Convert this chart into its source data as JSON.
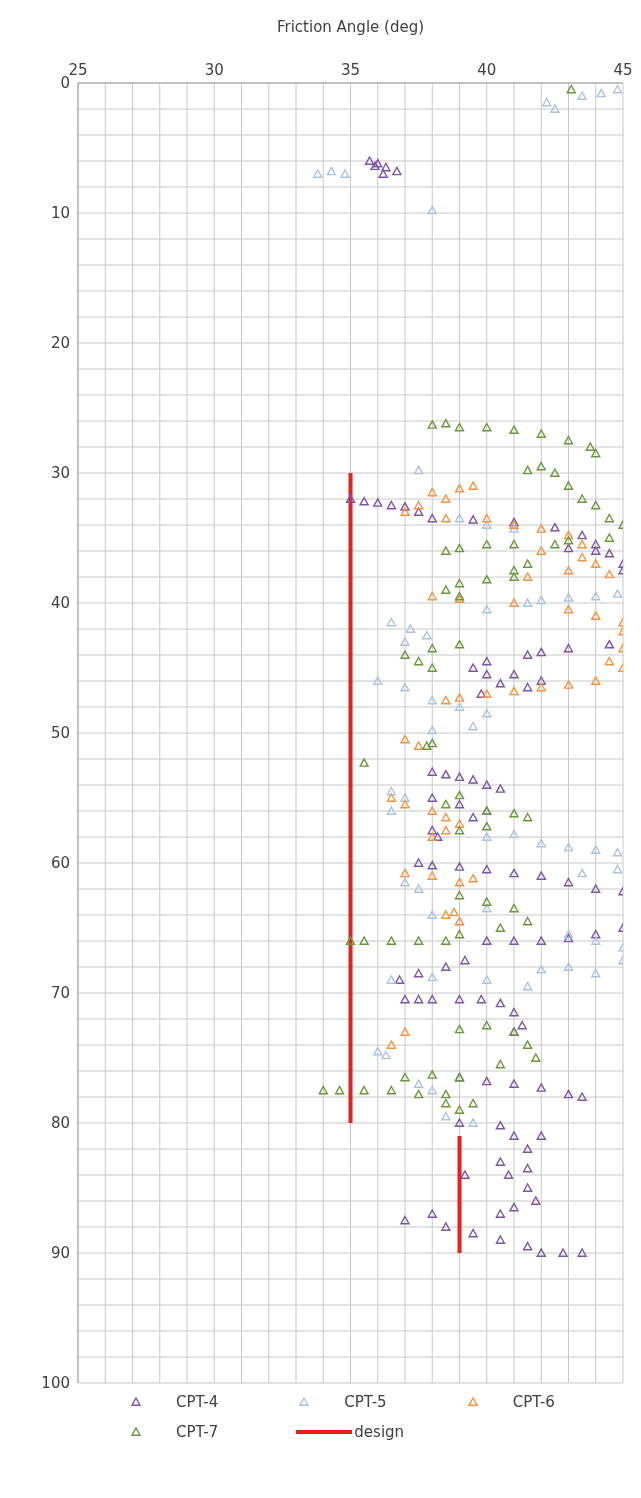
{
  "chart_data": {
    "type": "scatter",
    "xlabel": "Friction Angle (deg)",
    "xlim": [
      25,
      45
    ],
    "xticks": [
      25,
      {
        "value": 26,
        "label": null
      },
      {
        "value": 27,
        "label": null
      },
      {
        "value": 28,
        "label": null
      },
      {
        "value": 29,
        "label": null
      },
      30,
      {
        "value": 31,
        "label": null
      },
      {
        "value": 32,
        "label": null
      },
      {
        "value": 33,
        "label": null
      },
      {
        "value": 34,
        "label": null
      },
      35,
      {
        "value": 36,
        "label": null
      },
      {
        "value": 37,
        "label": null
      },
      {
        "value": 38,
        "label": null
      },
      {
        "value": 39,
        "label": null
      },
      40,
      {
        "value": 41,
        "label": null
      },
      {
        "value": 42,
        "label": null
      },
      {
        "value": 43,
        "label": null
      },
      {
        "value": 44,
        "label": null
      },
      45
    ],
    "ylim": [
      100,
      0
    ],
    "yticks": [
      0,
      {
        "value": 2,
        "label": null
      },
      {
        "value": 4,
        "label": null
      },
      {
        "value": 6,
        "label": null
      },
      {
        "value": 8,
        "label": null
      },
      10,
      {
        "value": 12,
        "label": null
      },
      {
        "value": 14,
        "label": null
      },
      {
        "value": 16,
        "label": null
      },
      {
        "value": 18,
        "label": null
      },
      20,
      {
        "value": 22,
        "label": null
      },
      {
        "value": 24,
        "label": null
      },
      {
        "value": 26,
        "label": null
      },
      {
        "value": 28,
        "label": null
      },
      30,
      {
        "value": 32,
        "label": null
      },
      {
        "value": 34,
        "label": null
      },
      {
        "value": 36,
        "label": null
      },
      {
        "value": 38,
        "label": null
      },
      40,
      {
        "value": 42,
        "label": null
      },
      {
        "value": 44,
        "label": null
      },
      {
        "value": 46,
        "label": null
      },
      {
        "value": 48,
        "label": null
      },
      50,
      {
        "value": 52,
        "label": null
      },
      {
        "value": 54,
        "label": null
      },
      {
        "value": 56,
        "label": null
      },
      {
        "value": 58,
        "label": null
      },
      60,
      {
        "value": 62,
        "label": null
      },
      {
        "value": 64,
        "label": null
      },
      {
        "value": 66,
        "label": null
      },
      {
        "value": 68,
        "label": null
      },
      70,
      {
        "value": 72,
        "label": null
      },
      {
        "value": 74,
        "label": null
      },
      {
        "value": 76,
        "label": null
      },
      {
        "value": 78,
        "label": null
      },
      80,
      {
        "value": 82,
        "label": null
      },
      {
        "value": 84,
        "label": null
      },
      {
        "value": 86,
        "label": null
      },
      {
        "value": 88,
        "label": null
      },
      90,
      {
        "value": 92,
        "label": null
      },
      {
        "value": 94,
        "label": null
      },
      {
        "value": 96,
        "label": null
      },
      {
        "value": 98,
        "label": null
      },
      100
    ],
    "grid": true,
    "legend": "bottom",
    "marker": "triangle",
    "series": [
      {
        "name": "CPT-4",
        "color": "#7b55a8",
        "x": [
          35.7,
          36,
          36.3,
          36.7,
          36.2,
          35.9,
          35,
          35.5,
          36,
          36.5,
          37,
          37.5,
          38,
          39.5,
          41,
          42.5,
          43.5,
          44,
          44.5,
          45,
          45,
          43,
          44,
          44.5,
          43,
          42,
          41.5,
          40,
          39.5,
          40,
          41,
          42,
          40.5,
          41.5,
          39.8,
          38,
          38.5,
          39,
          39.5,
          40,
          40.5,
          38,
          39,
          40,
          39.5,
          38,
          38.2,
          37.5,
          38,
          39,
          40,
          41,
          42,
          43,
          44,
          45,
          45,
          44,
          43,
          42,
          40,
          41,
          39.2,
          38.5,
          37.5,
          36.8,
          37,
          37.5,
          38,
          39,
          39.8,
          40.5,
          41,
          41.3,
          41,
          39,
          40,
          41,
          42,
          43,
          43.5,
          39,
          40.5,
          41,
          42,
          41.5,
          40.5,
          41.5,
          40.8,
          39.2,
          41.5,
          41.8,
          41,
          40.5,
          37,
          38,
          38.5,
          39.5,
          40.5,
          41.5,
          42,
          42.8,
          43.5
        ],
        "values": [
          6,
          6.2,
          6.5,
          6.8,
          7,
          6.4,
          32,
          32.2,
          32.3,
          32.5,
          32.6,
          33,
          33.5,
          33.6,
          33.8,
          34.2,
          34.8,
          35.5,
          36.2,
          37,
          37.5,
          35.8,
          36,
          43.2,
          43.5,
          43.8,
          44,
          44.5,
          45,
          45.5,
          45.5,
          46,
          46.2,
          46.5,
          47,
          53,
          53.2,
          53.4,
          53.6,
          54,
          54.3,
          55,
          55.5,
          56,
          56.5,
          57.5,
          58,
          60,
          60.2,
          60.3,
          60.5,
          60.8,
          61,
          61.5,
          62,
          62.2,
          65,
          65.5,
          65.8,
          66,
          66,
          66,
          67.5,
          68,
          68.5,
          69,
          70.5,
          70.5,
          70.5,
          70.5,
          70.5,
          70.8,
          71.5,
          72.5,
          73,
          76.5,
          76.8,
          77,
          77.3,
          77.8,
          78,
          80,
          80.2,
          81,
          81,
          82,
          83,
          83.5,
          84,
          84,
          85,
          86,
          86.5,
          87,
          87.5,
          87,
          88,
          88.5,
          89,
          89.5,
          90,
          90,
          90
        ]
      },
      {
        "name": "CPT-5",
        "color": "#a9c3e3",
        "x": [
          42.2,
          42.5,
          43.5,
          44.2,
          44.8,
          33.8,
          34.3,
          34.8,
          38,
          37.5,
          39,
          40,
          41,
          40,
          41.5,
          42,
          43,
          44,
          44.8,
          36.5,
          37.2,
          37.8,
          37,
          36,
          37,
          38,
          39,
          40,
          39.5,
          38,
          36.5,
          37,
          36.5,
          40,
          41,
          42,
          43,
          44,
          44.8,
          44.8,
          43.5,
          37,
          37.5,
          38,
          39,
          40,
          43,
          44,
          45,
          45,
          43,
          42,
          44,
          36.5,
          38,
          40,
          41.5,
          36,
          36.3,
          37.5,
          38,
          38.5,
          39.5
        ],
        "values": [
          1.5,
          2,
          1,
          0.8,
          0.5,
          7,
          6.8,
          7,
          9.8,
          29.8,
          33.5,
          34,
          34.3,
          40.5,
          40,
          39.8,
          39.6,
          39.5,
          39.3,
          41.5,
          42,
          42.5,
          43,
          46,
          46.5,
          47.5,
          48,
          48.5,
          49.5,
          49.8,
          54.5,
          55,
          56,
          58,
          57.8,
          58.5,
          58.8,
          59,
          59.2,
          60.5,
          60.8,
          61.5,
          62,
          64,
          64.5,
          63.5,
          65.5,
          66,
          66.5,
          67.5,
          68,
          68.2,
          68.5,
          69,
          68.8,
          69,
          69.5,
          74.5,
          74.8,
          77,
          77.5,
          79.5,
          80
        ]
      },
      {
        "name": "CPT-6",
        "color": "#f7933f",
        "x": [
          38,
          39,
          39.5,
          37.5,
          38.5,
          37,
          38.5,
          40,
          41,
          42,
          43,
          43.5,
          42,
          43.5,
          44,
          44.5,
          43,
          41.5,
          38,
          39,
          41,
          43,
          44,
          45,
          45,
          45,
          44.5,
          45,
          44,
          43,
          42,
          41,
          40,
          39,
          38.5,
          37,
          37.5,
          36.5,
          37,
          38,
          38.5,
          38,
          38.5,
          39,
          37,
          38,
          39,
          39.5,
          38.5,
          39,
          38.8,
          36.5,
          37
        ],
        "values": [
          31.5,
          31.2,
          31,
          32.5,
          32,
          33,
          33.5,
          33.5,
          34,
          34.3,
          34.8,
          35.5,
          36,
          36.5,
          37,
          37.8,
          37.5,
          38,
          39.5,
          39.7,
          40,
          40.5,
          41,
          41.5,
          42.2,
          43.5,
          44.5,
          45,
          46,
          46.3,
          46.5,
          46.8,
          47,
          47.3,
          47.5,
          50.5,
          51,
          55,
          55.5,
          56,
          56.5,
          58,
          57.5,
          57,
          60.8,
          61,
          61.5,
          61.2,
          64,
          64.5,
          63.8,
          74,
          73
        ]
      },
      {
        "name": "CPT-7",
        "color": "#68983a",
        "x": [
          43.1,
          38,
          38.5,
          39,
          40,
          41,
          42,
          43,
          43.8,
          44,
          42,
          41.5,
          42.5,
          43,
          43.5,
          44,
          44.5,
          45,
          44.5,
          43,
          42.5,
          38.5,
          39,
          40,
          41,
          41.5,
          41,
          39,
          40,
          41,
          38.5,
          39,
          39,
          38,
          37,
          37.5,
          38,
          37.8,
          38,
          35.5,
          38.5,
          39,
          40,
          41,
          41.5,
          40,
          39,
          39,
          40,
          41,
          41.5,
          40.5,
          39,
          35,
          35.5,
          36.5,
          37.5,
          38.5,
          39,
          40,
          41,
          41.5,
          41.8,
          40.5,
          37,
          38,
          39,
          34,
          34.6,
          35.5,
          36.5,
          37.5,
          38.5,
          38.5,
          39.5,
          39
        ],
        "values": [
          0.5,
          26.3,
          26.2,
          26.5,
          26.5,
          26.7,
          27,
          27.5,
          28,
          28.5,
          29.5,
          29.8,
          30,
          31,
          32,
          32.5,
          33.5,
          34,
          35,
          35.2,
          35.5,
          36,
          35.8,
          35.5,
          35.5,
          37,
          37.5,
          38.5,
          38.2,
          38,
          39,
          39.5,
          43.2,
          43.5,
          44,
          44.5,
          45,
          51,
          50.8,
          52.3,
          55.5,
          54.8,
          56,
          56.2,
          56.5,
          57.2,
          57.5,
          62.5,
          63,
          63.5,
          64.5,
          65,
          65.5,
          66,
          66,
          66,
          66,
          66,
          72.8,
          72.5,
          73,
          74,
          75,
          75.5,
          76.5,
          76.3,
          76.5,
          77.5,
          77.5,
          77.5,
          77.5,
          77.8,
          77.8,
          78.5,
          78.5,
          79
        ]
      },
      {
        "name": "design",
        "type": "line",
        "color": "#e8201e",
        "line_style": "solid",
        "marker": "none",
        "x": [
          35,
          35
        ],
        "values": [
          30,
          80
        ]
      },
      {
        "type": "line",
        "color": "#e8201e",
        "line_style": "solid",
        "marker": "none",
        "x": [
          39,
          39
        ],
        "values": [
          81,
          90
        ]
      }
    ]
  }
}
